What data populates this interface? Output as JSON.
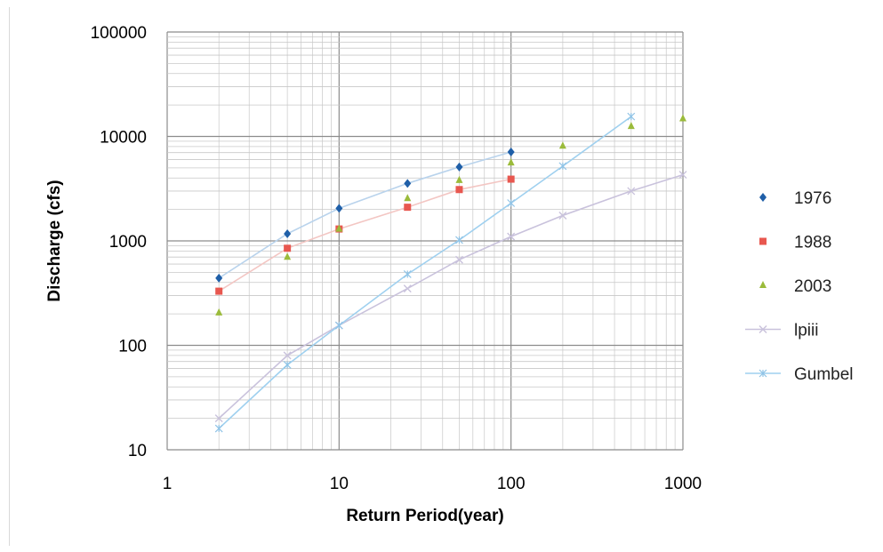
{
  "chart_data": {
    "type": "scatter",
    "title": "",
    "xlabel": "Return Period(year)",
    "ylabel": "Discharge (cfs)",
    "x_scale": "log",
    "y_scale": "log",
    "xlim": [
      1,
      1000
    ],
    "ylim": [
      10,
      100000
    ],
    "x_ticks": [
      "1",
      "10",
      "100",
      "1000"
    ],
    "y_ticks": [
      "10",
      "100",
      "1000",
      "10000",
      "100000"
    ],
    "grid": true,
    "legend_position": "right",
    "series": [
      {
        "name": "1976",
        "marker": "diamond",
        "color": "#1f5fa8",
        "line_color": "#b9d3ec",
        "x": [
          2,
          5,
          10,
          25,
          50,
          100
        ],
        "y": [
          440,
          1170,
          2050,
          3550,
          5100,
          7100
        ]
      },
      {
        "name": "1988",
        "marker": "square",
        "color": "#e8574f",
        "line_color": "#f3c6c3",
        "x": [
          2,
          5,
          10,
          25,
          50,
          100
        ],
        "y": [
          330,
          850,
          1300,
          2100,
          3100,
          3900
        ]
      },
      {
        "name": "2003",
        "marker": "triangle",
        "color": "#9bbb3b",
        "line_color": null,
        "x": [
          2,
          5,
          10,
          25,
          50,
          100,
          200,
          500,
          1000
        ],
        "y": [
          205,
          700,
          1300,
          2550,
          3800,
          5600,
          8100,
          12500,
          14800
        ]
      },
      {
        "name": "lpiii",
        "marker": "x",
        "color": "#c9c2dc",
        "line_color": "#c9c2dc",
        "x": [
          2,
          5,
          10,
          25,
          50,
          100,
          200,
          500,
          1000
        ],
        "y": [
          20,
          80,
          155,
          350,
          660,
          1100,
          1750,
          3000,
          4300
        ]
      },
      {
        "name": "Gumbel",
        "marker": "star",
        "color": "#8fc3e6",
        "line_color": "#9fd0ef",
        "x": [
          2,
          5,
          10,
          25,
          50,
          100,
          200,
          500
        ],
        "y": [
          16,
          65,
          155,
          480,
          1020,
          2300,
          5200,
          15500
        ]
      }
    ]
  }
}
